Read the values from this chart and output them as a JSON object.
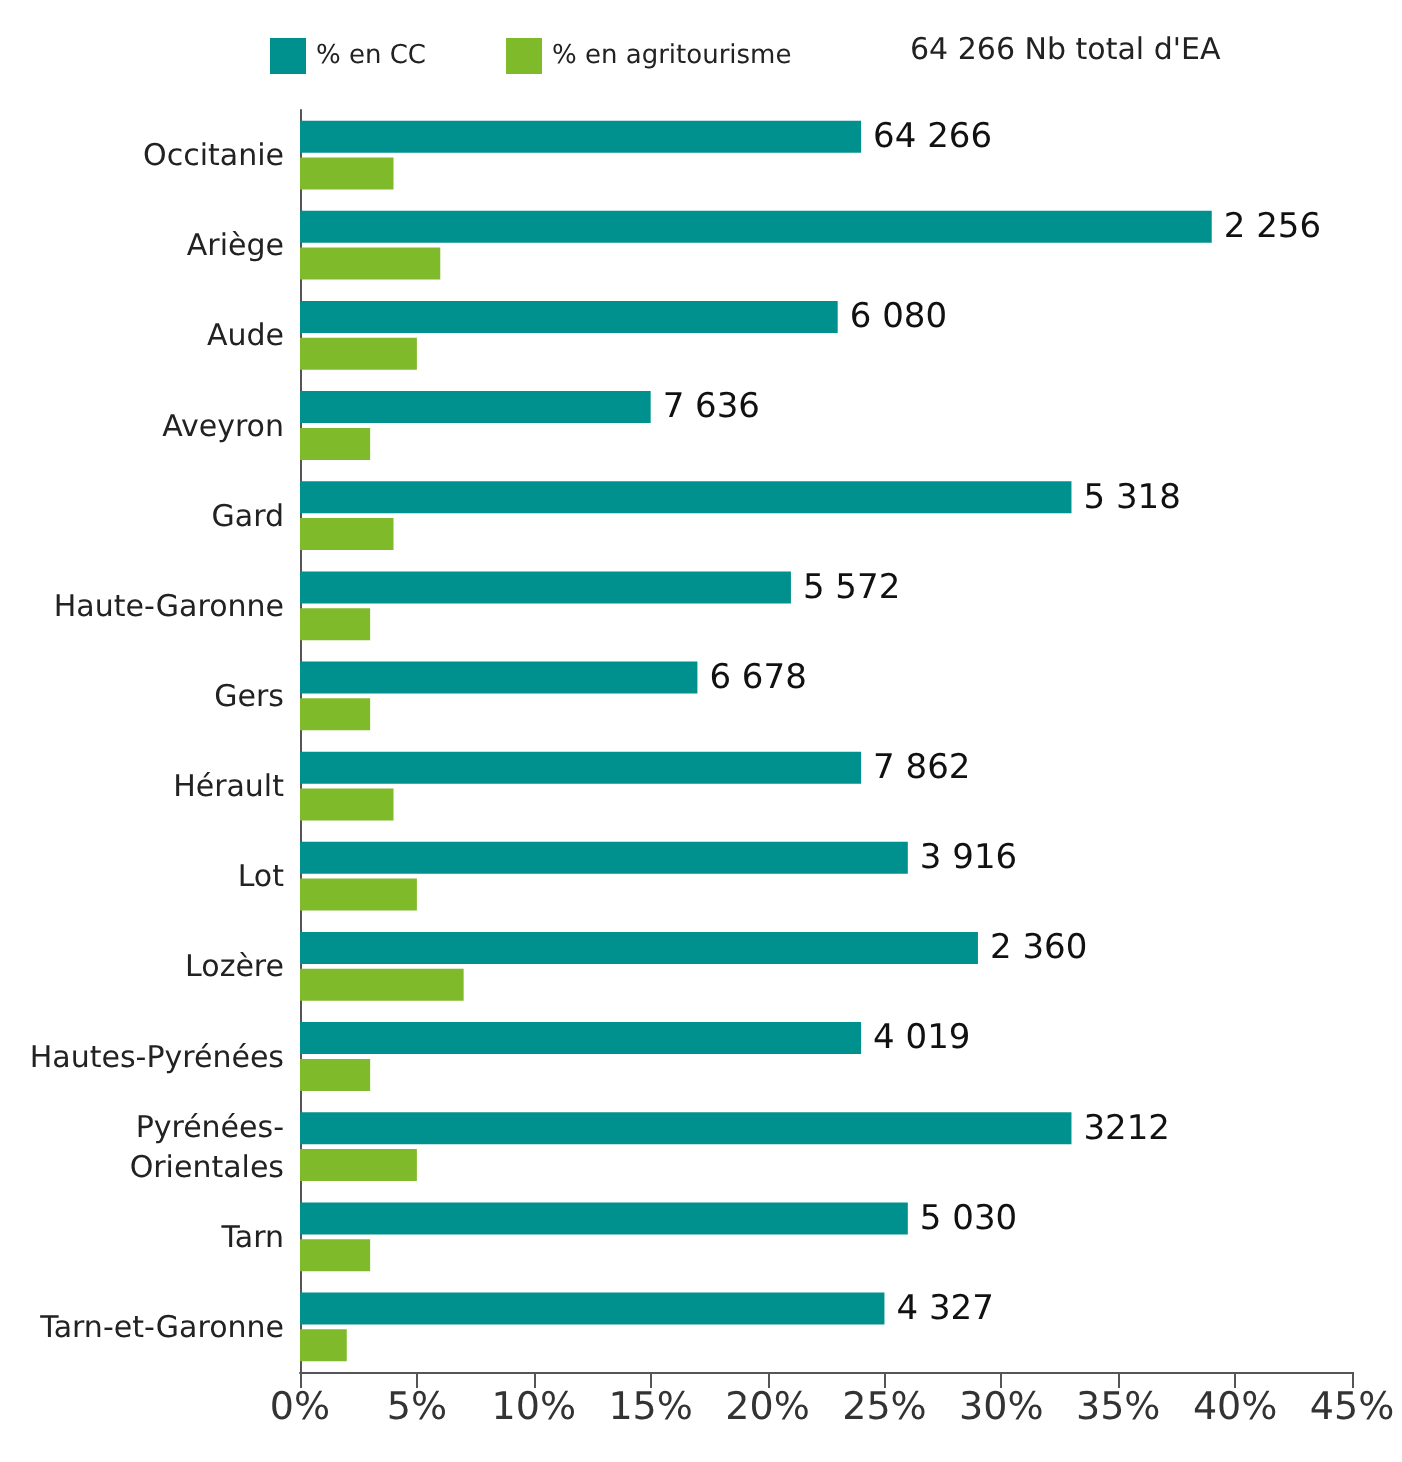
{
  "chart_data": {
    "type": "bar",
    "orientation": "horizontal",
    "categories": [
      "Occitanie",
      "Ariège",
      "Aude",
      "Aveyron",
      "Gard",
      "Haute-Garonne",
      "Gers",
      "Hérault",
      "Lot",
      "Lozère",
      "Hautes-Pyrénées",
      "Pyrénées-\nOrientales",
      "Tarn",
      "Tarn-et-Garonne"
    ],
    "series": [
      {
        "name": "% en CC",
        "color": "#00918f",
        "values": [
          24,
          39,
          23,
          15,
          33,
          21,
          17,
          24,
          26,
          29,
          24,
          33,
          26,
          25
        ]
      },
      {
        "name": "% en agritourisme",
        "color": "#7fba2a",
        "values": [
          4,
          6,
          5,
          3,
          4,
          3,
          3,
          4,
          5,
          7,
          3,
          5,
          3,
          2
        ]
      }
    ],
    "xlim": [
      0,
      45
    ],
    "xticks": [
      {
        "value": 0,
        "label": "0%"
      },
      {
        "value": 5,
        "label": "5%"
      },
      {
        "value": 10,
        "label": "10%"
      },
      {
        "value": 15,
        "label": "15%"
      },
      {
        "value": 20,
        "label": "20%"
      },
      {
        "value": 25,
        "label": "25%"
      },
      {
        "value": 30,
        "label": "30%"
      },
      {
        "value": 35,
        "label": "35%"
      },
      {
        "value": 40,
        "label": "40%"
      },
      {
        "value": 45,
        "label": "45%"
      }
    ],
    "annotations": [
      "64 266 Nb total d'EA",
      {
        "text": "64 266",
        "x": 24,
        "y": "Occitanie"
      },
      {
        "text": "2 256",
        "x": 39,
        "y": "Ariège"
      },
      {
        "text": "6 080",
        "x": 23,
        "y": "Aude"
      },
      {
        "text": "7 636",
        "x": 15,
        "y": "Aveyron"
      },
      {
        "text": "5 318",
        "x": 33,
        "y": "Gard"
      },
      {
        "text": "5 572",
        "x": 21,
        "y": "Haute-Garonne"
      },
      {
        "text": "6 678",
        "x": 17,
        "y": "Gers"
      },
      {
        "text": "7 862",
        "x": 24,
        "y": "Hérault"
      },
      {
        "text": "3 916",
        "x": 26,
        "y": "Lot"
      },
      {
        "text": "2 360",
        "x": 29,
        "y": "Lozère"
      },
      {
        "text": "4 019",
        "x": 24,
        "y": "Hautes-Pyrénées"
      },
      {
        "text": "3212",
        "x": 33,
        "y": "Pyrénées-\nOrientales"
      },
      {
        "text": "5 030",
        "x": 26,
        "y": "Tarn"
      },
      {
        "text": "4 327",
        "x": 25,
        "y": "Tarn-et-Garonne"
      }
    ],
    "legend": "top left",
    "grid": false
  }
}
